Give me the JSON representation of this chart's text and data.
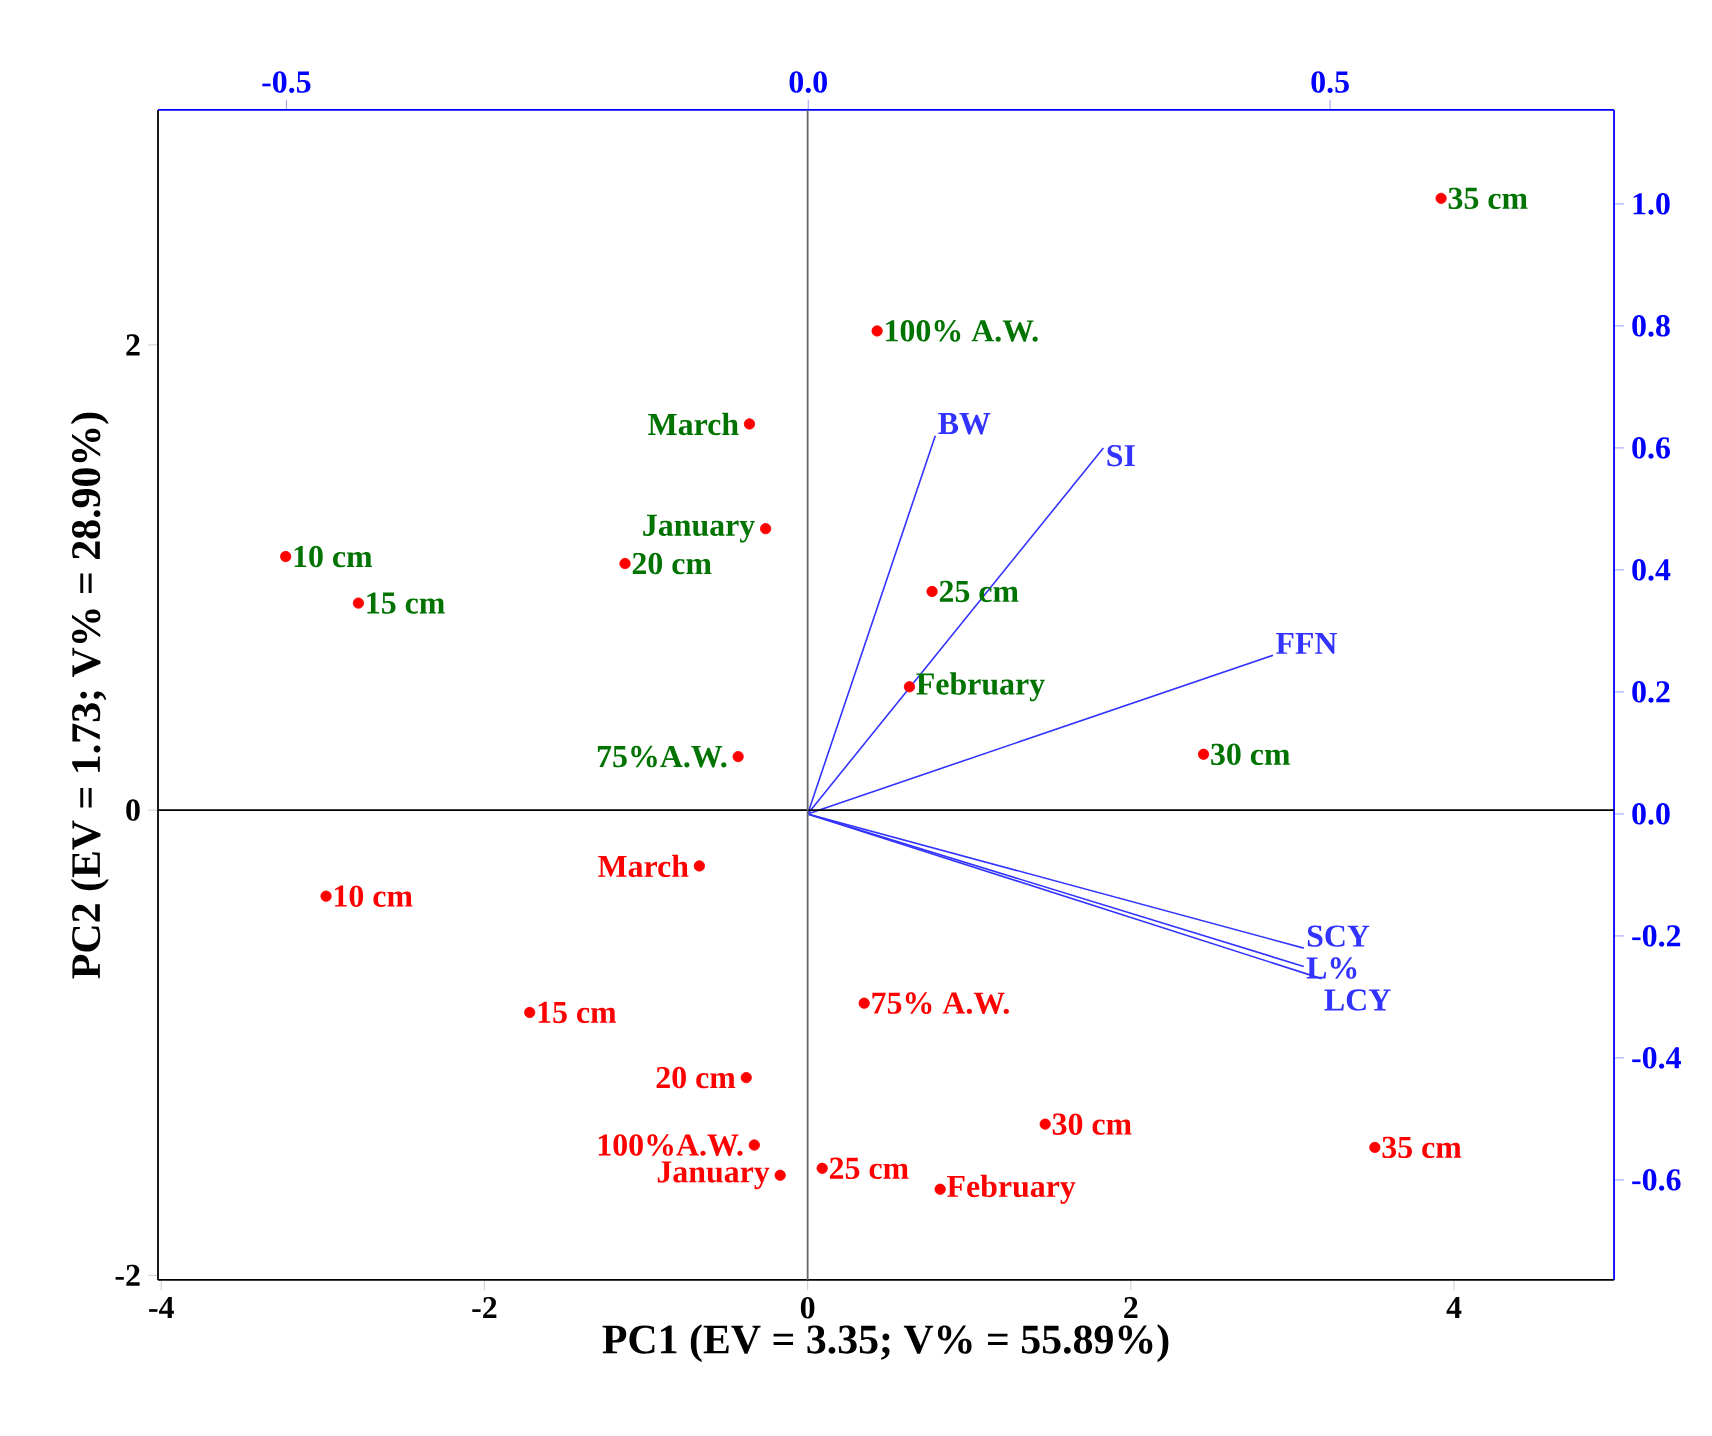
{
  "chart_data": {
    "type": "scatter",
    "xlabel": "PC1 (EV = 3.35; V% = 55.89%)",
    "ylabel": "PC2 (EV = 1.73; V% = 28.90%)",
    "xlim": [
      -4.02,
      4.99
    ],
    "ylim": [
      -2.02,
      3.01
    ],
    "xticks": [
      -4,
      -2,
      0,
      2,
      4
    ],
    "yticks": [
      -2,
      0,
      2
    ],
    "x2lim": [
      -0.623,
      0.772
    ],
    "x2ticks": [
      {
        "value": -0.5,
        "label": "-0.5"
      },
      {
        "value": 0,
        "label": "0.0"
      },
      {
        "value": 0.5,
        "label": "0.5"
      }
    ],
    "y2lim": [
      -0.764,
      1.154
    ],
    "y2ticks": [
      {
        "value": -0.6,
        "label": "-0.6"
      },
      {
        "value": -0.4,
        "label": "-0.4"
      },
      {
        "value": -0.2,
        "label": "-0.2"
      },
      {
        "value": 0,
        "label": "0.0"
      },
      {
        "value": 0.2,
        "label": "0.2"
      },
      {
        "value": 0.4,
        "label": "0.4"
      },
      {
        "value": 0.6,
        "label": "0.6"
      },
      {
        "value": 0.8,
        "label": "0.8"
      },
      {
        "value": 1,
        "label": "1.0"
      }
    ],
    "series": [
      {
        "marker": "circle",
        "color": "#ff0000",
        "x": [
          3.92,
          0.43,
          -0.36,
          -0.26,
          -1.13,
          -3.23,
          -2.78,
          0.77,
          0.63,
          -0.43,
          2.45
        ],
        "values": [
          2.63,
          2.06,
          1.66,
          1.21,
          1.06,
          1.09,
          0.89,
          0.94,
          0.53,
          0.23,
          0.24
        ]
      },
      {
        "marker": "circle",
        "color": "#ff0000",
        "x": [
          -0.67,
          -2.98,
          -1.72,
          0.35,
          -0.38,
          -0.33,
          0.09,
          -0.17,
          1.47,
          3.51,
          0.82
        ],
        "values": [
          -0.24,
          -0.37,
          -0.87,
          -0.83,
          -1.15,
          -1.44,
          -1.54,
          -1.57,
          -1.35,
          -1.45,
          -1.63
        ]
      },
      {
        "type": "line",
        "axis": "y2",
        "marker": "none",
        "name": "BW",
        "color": "#3333ff",
        "x": [
          0,
          0.79
        ],
        "values": [
          0,
          0.62
        ]
      },
      {
        "type": "line",
        "axis": "y2",
        "marker": "none",
        "name": "SI",
        "color": "#3333ff",
        "x": [
          0,
          1.83
        ],
        "values": [
          0,
          0.6
        ]
      },
      {
        "type": "line",
        "axis": "y2",
        "marker": "none",
        "name": "FFN",
        "color": "#3333ff",
        "x": [
          0,
          2.88
        ],
        "values": [
          0,
          0.26
        ]
      },
      {
        "type": "line",
        "axis": "y2",
        "marker": "none",
        "name": "SCY",
        "color": "#3333ff",
        "x": [
          0,
          3.07
        ],
        "values": [
          0,
          -0.22
        ]
      },
      {
        "type": "line",
        "axis": "y2",
        "marker": "none",
        "name": "L%",
        "color": "#3333ff",
        "x": [
          0,
          3.07
        ],
        "values": [
          0,
          -0.25
        ]
      },
      {
        "type": "line",
        "axis": "y2",
        "marker": "none",
        "name": "LCY",
        "color": "#3333ff",
        "x": [
          0,
          3.18
        ],
        "values": [
          0,
          -0.27
        ]
      }
    ],
    "annotations": [
      {
        "text": "35 cm",
        "x": 3.92,
        "y": 2.63
      },
      {
        "text": "100% A.W.",
        "x": 0.43,
        "y": 2.06
      },
      {
        "text": "March",
        "x": -0.36,
        "y": 1.66
      },
      {
        "text": "January",
        "x": -0.26,
        "y": 1.21
      },
      {
        "text": "20 cm",
        "x": -1.13,
        "y": 1.06
      },
      {
        "text": "10 cm",
        "x": -3.23,
        "y": 1.09
      },
      {
        "text": "15 cm",
        "x": -2.78,
        "y": 0.89
      },
      {
        "text": "25 cm",
        "x": 0.77,
        "y": 0.94
      },
      {
        "text": "February",
        "x": 0.63,
        "y": 0.53
      },
      {
        "text": "75%A.W.",
        "x": -0.43,
        "y": 0.23
      },
      {
        "text": "30 cm",
        "x": 2.45,
        "y": 0.24
      },
      {
        "text": "March",
        "x": -0.67,
        "y": -0.24
      },
      {
        "text": "10 cm",
        "x": -2.98,
        "y": -0.37
      },
      {
        "text": "15 cm",
        "x": -1.72,
        "y": -0.87
      },
      {
        "text": "75% A.W.",
        "x": 0.35,
        "y": -0.83
      },
      {
        "text": "20 cm",
        "x": -0.38,
        "y": -1.15
      },
      {
        "text": "100%A.W.",
        "x": -0.33,
        "y": -1.44
      },
      {
        "text": "25 cm",
        "x": 0.09,
        "y": -1.54
      },
      {
        "text": "January",
        "x": -0.17,
        "y": -1.57
      },
      {
        "text": "30 cm",
        "x": 1.47,
        "y": -1.35
      },
      {
        "text": "35 cm",
        "x": 3.51,
        "y": -1.45
      },
      {
        "text": "February",
        "x": 0.82,
        "y": -1.63
      }
    ],
    "ref_lines": [
      {
        "axis": "x",
        "value": 0,
        "color": "#666666"
      },
      {
        "axis": "y",
        "value": 0,
        "color": "#000000"
      }
    ]
  }
}
